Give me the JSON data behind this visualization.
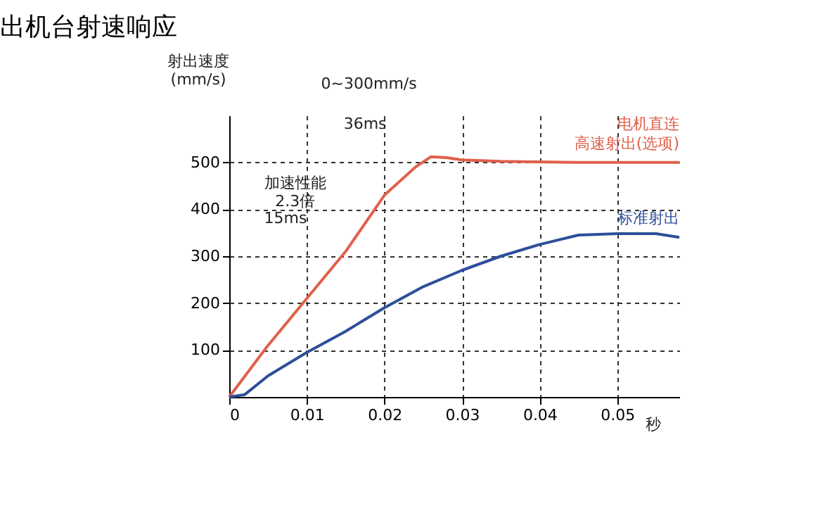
{
  "chart_data": {
    "type": "line",
    "title": "出机台射速响应",
    "xlabel": "秒",
    "ylabel": "射出速度\n(mm/s)",
    "xlim": [
      0,
      0.058
    ],
    "ylim": [
      0,
      600
    ],
    "xticks": [
      0,
      0.01,
      0.02,
      0.03,
      0.04,
      0.05
    ],
    "yticks": [
      100,
      200,
      300,
      400,
      500
    ],
    "grid": true,
    "line_style": "solid",
    "marker": "none",
    "series": [
      {
        "name": "电机直连高速射出(选项)",
        "color": "#e0604a",
        "x": [
          0,
          0.005,
          0.01,
          0.015,
          0.02,
          0.024,
          0.026,
          0.028,
          0.03,
          0.035,
          0.045,
          0.05,
          0.058
        ],
        "values": [
          0,
          110,
          210,
          310,
          430,
          490,
          512,
          510,
          505,
          502,
          500,
          500,
          500
        ]
      },
      {
        "name": "标准射出",
        "color": "#2d4f9a",
        "x": [
          0,
          0.002,
          0.005,
          0.01,
          0.015,
          0.02,
          0.025,
          0.03,
          0.035,
          0.04,
          0.045,
          0.05,
          0.055,
          0.058
        ],
        "values": [
          0,
          5,
          45,
          95,
          140,
          190,
          235,
          270,
          300,
          325,
          345,
          348,
          348,
          340
        ]
      }
    ],
    "annotations": [
      "0~300mm/s",
      "加速性能\n2.3倍",
      "36ms",
      "15ms"
    ]
  }
}
